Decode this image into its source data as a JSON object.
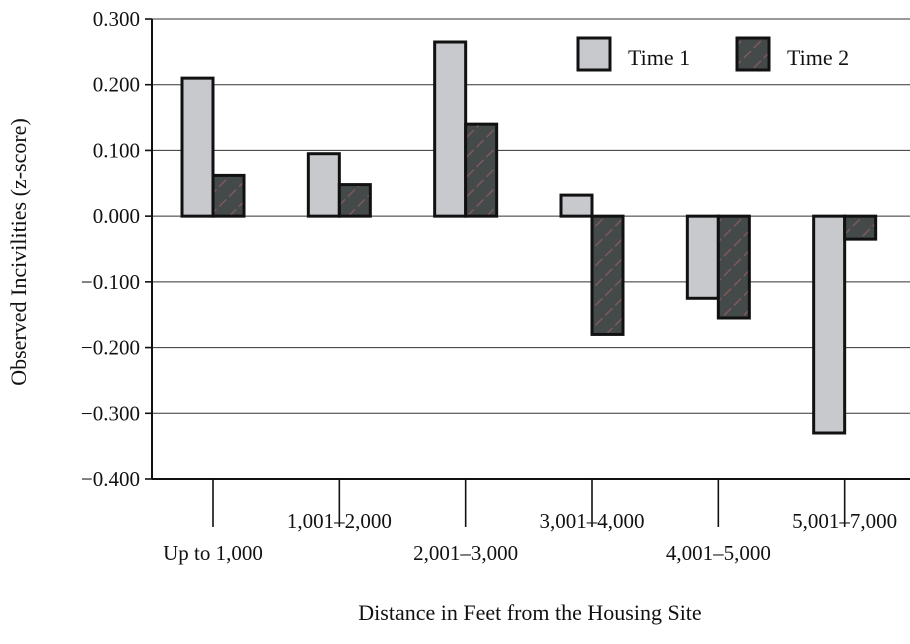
{
  "chart_data": {
    "type": "bar",
    "title": "",
    "xlabel": "Distance in Feet from the Housing Site",
    "ylabel": "Observed Incivilities (z-score)",
    "ylim": [
      -0.4,
      0.3
    ],
    "yticks": [
      0.3,
      0.2,
      0.1,
      0.0,
      -0.1,
      -0.2,
      -0.3,
      -0.4
    ],
    "ytick_labels": [
      "0.300",
      "0.200",
      "0.100",
      "0.000",
      "−0.100",
      "−0.200",
      "−0.300",
      "−0.400"
    ],
    "categories": [
      "Up to 1,000",
      "1,001–2,000",
      "2,001–3,000",
      "3,001–4,000",
      "4,001–5,000",
      "5,001–7,000"
    ],
    "series": [
      {
        "name": "Time 1",
        "values": [
          0.21,
          0.095,
          0.265,
          0.032,
          -0.125,
          -0.33
        ],
        "color": "#c8c9cd"
      },
      {
        "name": "Time 2",
        "values": [
          0.062,
          0.048,
          0.14,
          -0.18,
          -0.155,
          -0.035
        ],
        "color": "#444a4a"
      }
    ],
    "grid": true,
    "legend": "top-right"
  }
}
